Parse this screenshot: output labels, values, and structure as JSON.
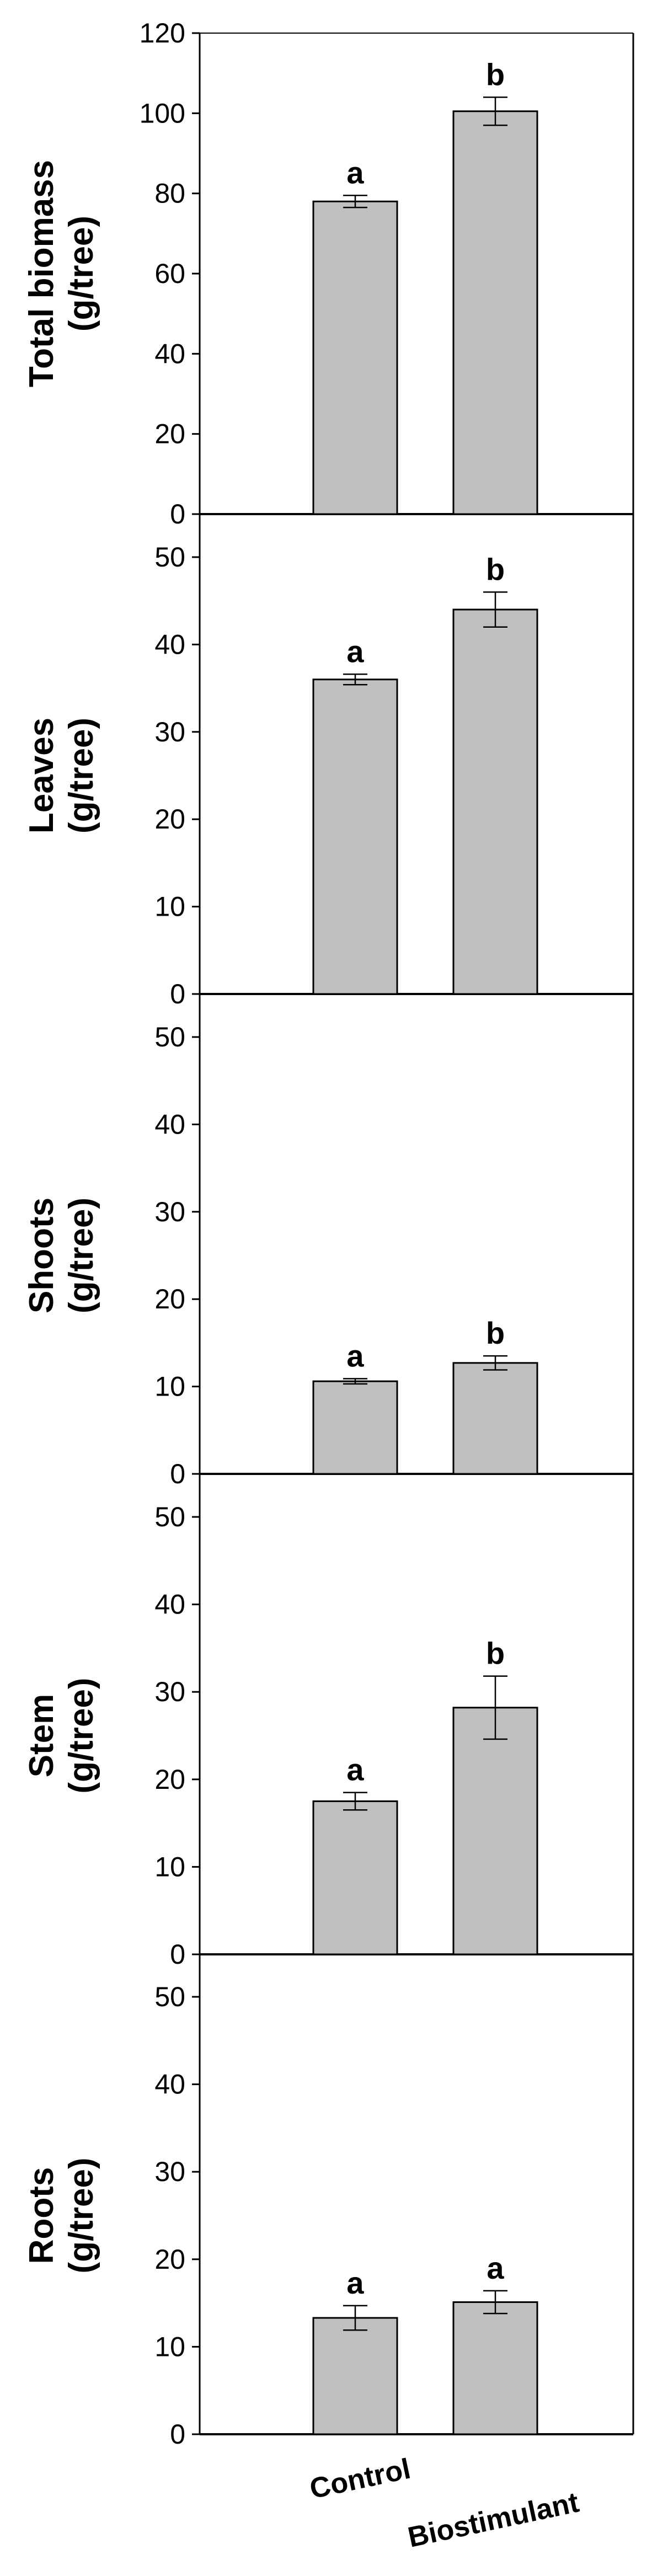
{
  "chart_data": [
    {
      "type": "bar",
      "ylabel": [
        "Total biomass",
        "(g/tree)"
      ],
      "ylim": [
        0,
        120
      ],
      "yticks": [
        0,
        20,
        40,
        60,
        80,
        100,
        120
      ],
      "categories": [
        "Control",
        "Biostimulant"
      ],
      "values": [
        78,
        100.5
      ],
      "errors": [
        1.5,
        3.5
      ],
      "annotations": [
        "a",
        "b"
      ]
    },
    {
      "type": "bar",
      "ylabel": [
        "Leaves",
        "(g/tree)"
      ],
      "ylim": [
        0,
        50
      ],
      "yticks": [
        0,
        10,
        20,
        30,
        40,
        50
      ],
      "categories": [
        "Control",
        "Biostimulant"
      ],
      "values": [
        36,
        44
      ],
      "errors": [
        0.6,
        2
      ],
      "annotations": [
        "a",
        "b"
      ]
    },
    {
      "type": "bar",
      "ylabel": [
        "Shoots",
        "(g/tree)"
      ],
      "ylim": [
        0,
        50
      ],
      "yticks": [
        0,
        10,
        20,
        30,
        40,
        50
      ],
      "categories": [
        "Control",
        "Biostimulant"
      ],
      "values": [
        10.6,
        12.7
      ],
      "errors": [
        0.3,
        0.8
      ],
      "annotations": [
        "a",
        "b"
      ]
    },
    {
      "type": "bar",
      "ylabel": [
        "Stem",
        "(g/tree)"
      ],
      "ylim": [
        0,
        50
      ],
      "yticks": [
        0,
        10,
        20,
        30,
        40,
        50
      ],
      "categories": [
        "Control",
        "Biostimulant"
      ],
      "values": [
        17.5,
        28.2
      ],
      "errors": [
        1,
        3.6
      ],
      "annotations": [
        "a",
        "b"
      ]
    },
    {
      "type": "bar",
      "ylabel": [
        "Roots",
        "(g/tree)"
      ],
      "ylim": [
        0,
        50
      ],
      "yticks": [
        0,
        10,
        20,
        30,
        40,
        50
      ],
      "categories": [
        "Control",
        "Biostimulant"
      ],
      "values": [
        13.3,
        15.1
      ],
      "errors": [
        1.4,
        1.3
      ],
      "annotations": [
        "a",
        "a"
      ]
    }
  ],
  "colors": {
    "bar_fill": "#c0c0c0",
    "bar_stroke": "#000000",
    "axis": "#000000"
  }
}
